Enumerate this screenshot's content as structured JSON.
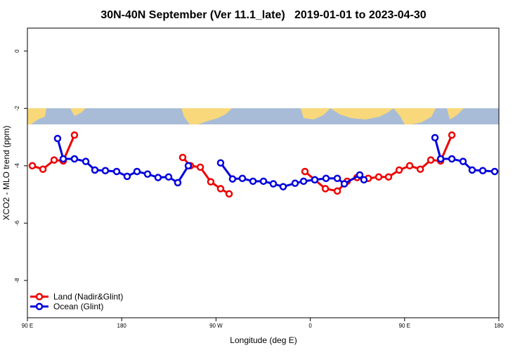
{
  "chart_data": {
    "type": "line",
    "title": "30N-40N September (Ver 11.1_late)   2019-01-01 to 2023-04-30",
    "x_label": "Longitude (deg E)",
    "y_label": "XCO2 - MLO trend (ppm)",
    "xlim": [
      90,
      540
    ],
    "ylim": [
      -9.3,
      0.8
    ],
    "xticks": [
      {
        "value": 90,
        "label": "90 E"
      },
      180,
      {
        "value": 270,
        "label": "90 W"
      },
      {
        "value": 360,
        "label": "0"
      },
      {
        "value": 450,
        "label": "90 E"
      },
      {
        "value": 540,
        "label": "180"
      }
    ],
    "yticks": [
      0,
      -2,
      -4,
      -6,
      -8
    ],
    "legend": "bottom-left",
    "series": [
      {
        "name": "Land (Nadir&Glint)",
        "color": "#ee0000",
        "x": [
          94.7,
          104.8,
          115.5,
          124.2,
          134.9,
          null,
          238.2,
          245.6,
          255,
          265,
          274.4,
          282.5,
          null,
          354.9,
          364.3,
          374.4,
          385.8,
          395.2,
          404.6,
          415.3,
          425.3,
          434.7,
          444.8,
          454.9,
          465,
          475,
          484.4,
          495.1
        ],
        "values": [
          -4.0,
          -4.12,
          -3.8,
          -3.83,
          -2.93,
          null,
          -3.71,
          -4.0,
          -4.05,
          -4.56,
          -4.8,
          -4.98,
          null,
          -4.2,
          -4.49,
          -4.8,
          -4.88,
          -4.54,
          -4.41,
          -4.44,
          -4.39,
          -4.39,
          -4.15,
          -4.0,
          -4.12,
          -3.8,
          -3.83,
          -2.93
        ]
      },
      {
        "name": "Ocean (Glint)",
        "color": "#0000dd",
        "x": [
          118.8,
          124.2,
          134.9,
          145.7,
          154.4,
          164.4,
          175.2,
          185.2,
          194.6,
          204.7,
          214.7,
          224.8,
          233.5,
          243.6,
          null,
          274.4,
          285.8,
          295.2,
          305.3,
          315.3,
          324.7,
          334.1,
          345.5,
          353.6,
          364.3,
          375,
          385.8,
          392.5,
          407.2,
          411.2,
          null,
          479,
          484.4,
          495.1,
          505.8,
          514.5,
          524.6,
          536
        ],
        "values": [
          -3.05,
          -3.76,
          -3.76,
          -3.85,
          -4.15,
          -4.17,
          -4.2,
          -4.37,
          -4.2,
          -4.29,
          -4.41,
          -4.39,
          -4.59,
          -4.0,
          null,
          -3.9,
          -4.46,
          -4.44,
          -4.54,
          -4.54,
          -4.63,
          -4.73,
          -4.61,
          -4.54,
          -4.49,
          -4.44,
          -4.44,
          -4.63,
          -4.32,
          -4.49,
          null,
          -3.02,
          -3.76,
          -3.76,
          -3.85,
          -4.15,
          -4.17,
          -4.2
        ]
      }
    ]
  }
}
